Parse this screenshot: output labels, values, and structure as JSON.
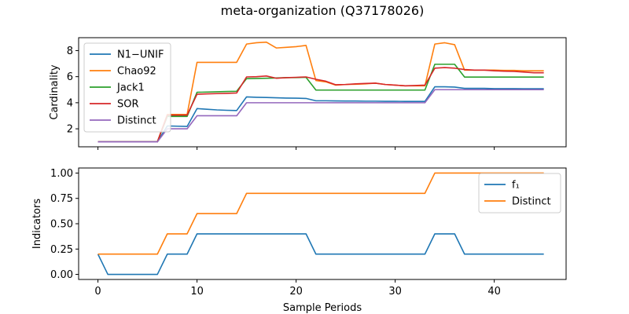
{
  "title": "meta-organization (Q37178026)",
  "chart_data": [
    {
      "type": "line",
      "ylabel": "Cardinality",
      "xlabel": "",
      "xlim": [
        -1.95,
        47.25
      ],
      "ylim": [
        0.62,
        8.99
      ],
      "xticks": [
        0,
        10,
        20,
        30,
        40
      ],
      "yticks": [
        2,
        4,
        6,
        8
      ],
      "legend_position": "top-left",
      "grid": false,
      "x": [
        0,
        1,
        2,
        3,
        4,
        5,
        6,
        7,
        8,
        9,
        10,
        11,
        12,
        13,
        14,
        15,
        16,
        17,
        18,
        19,
        20,
        21,
        22,
        23,
        24,
        25,
        26,
        27,
        28,
        29,
        30,
        31,
        32,
        33,
        34,
        35,
        36,
        37,
        38,
        39,
        40,
        41,
        42,
        43,
        44,
        45
      ],
      "series": [
        {
          "name": "N1−UNIF",
          "color": "#1f77b4",
          "values": [
            1,
            1,
            1,
            1,
            1,
            1,
            1,
            2.22,
            2.2,
            2.18,
            3.55,
            3.5,
            3.45,
            3.42,
            3.4,
            4.45,
            4.42,
            4.4,
            4.38,
            4.36,
            4.35,
            4.33,
            4.15,
            4.15,
            4.14,
            4.13,
            4.13,
            4.12,
            4.12,
            4.11,
            4.11,
            4.1,
            4.1,
            4.1,
            5.22,
            5.22,
            5.2,
            5.1,
            5.1,
            5.1,
            5.08,
            5.08,
            5.08,
            5.07,
            5.07,
            5.07
          ]
        },
        {
          "name": "Chao92",
          "color": "#ff7f0e",
          "values": [
            1,
            1,
            1,
            1,
            1,
            1,
            1,
            3.1,
            3.1,
            3.1,
            7.1,
            7.1,
            7.1,
            7.1,
            7.1,
            8.5,
            8.6,
            8.65,
            8.2,
            8.25,
            8.3,
            8.4,
            5.7,
            5.6,
            5.35,
            5.4,
            5.42,
            5.45,
            5.5,
            5.4,
            5.35,
            5.3,
            5.3,
            5.3,
            8.5,
            8.6,
            8.45,
            6.5,
            6.5,
            6.5,
            6.5,
            6.48,
            6.48,
            6.45,
            6.45,
            6.45
          ]
        },
        {
          "name": "Jack1",
          "color": "#2ca02c",
          "values": [
            1,
            1,
            1,
            1,
            1,
            1,
            1,
            2.95,
            2.95,
            2.95,
            4.8,
            4.82,
            4.84,
            4.86,
            4.88,
            5.85,
            5.86,
            5.88,
            5.9,
            5.92,
            5.93,
            5.95,
            4.97,
            4.97,
            4.97,
            4.97,
            4.97,
            4.97,
            4.97,
            4.97,
            4.97,
            4.97,
            4.97,
            4.97,
            6.95,
            6.95,
            6.95,
            5.97,
            5.97,
            5.97,
            5.97,
            5.97,
            5.97,
            5.97,
            5.97,
            5.97
          ]
        },
        {
          "name": "SOR",
          "color": "#d62728",
          "values": [
            1,
            1,
            1,
            1,
            1,
            1,
            1,
            3.05,
            3.05,
            3.05,
            4.65,
            4.68,
            4.7,
            4.72,
            4.75,
            5.98,
            6.0,
            6.05,
            5.88,
            5.92,
            5.95,
            5.98,
            5.8,
            5.65,
            5.38,
            5.4,
            5.45,
            5.48,
            5.5,
            5.4,
            5.35,
            5.3,
            5.32,
            5.35,
            6.65,
            6.7,
            6.65,
            6.55,
            6.5,
            6.5,
            6.45,
            6.42,
            6.4,
            6.35,
            6.3,
            6.3
          ]
        },
        {
          "name": "Distinct",
          "color": "#9467bd",
          "values": [
            1,
            1,
            1,
            1,
            1,
            1,
            1,
            2,
            2,
            2,
            3,
            3,
            3,
            3,
            3,
            4,
            4,
            4,
            4,
            4,
            4,
            4,
            4,
            4,
            4,
            4,
            4,
            4,
            4,
            4,
            4,
            4,
            4,
            4,
            5,
            5,
            5,
            5,
            5,
            5,
            5,
            5,
            5,
            5,
            5,
            5
          ]
        }
      ]
    },
    {
      "type": "line",
      "ylabel": "Indicators",
      "xlabel": "Sample Periods",
      "xlim": [
        -1.95,
        47.25
      ],
      "ylim": [
        -0.05,
        1.05
      ],
      "xticks": [
        0,
        10,
        20,
        30,
        40
      ],
      "yticks": [
        0.0,
        0.25,
        0.5,
        0.75,
        1.0
      ],
      "ytick_labels": [
        "0.00",
        "0.25",
        "0.50",
        "0.75",
        "1.00"
      ],
      "legend_position": "top-right",
      "grid": false,
      "x": [
        0,
        1,
        2,
        3,
        4,
        5,
        6,
        7,
        8,
        9,
        10,
        11,
        12,
        13,
        14,
        15,
        16,
        17,
        18,
        19,
        20,
        21,
        22,
        23,
        24,
        25,
        26,
        27,
        28,
        29,
        30,
        31,
        32,
        33,
        34,
        35,
        36,
        37,
        38,
        39,
        40,
        41,
        42,
        43,
        44,
        45
      ],
      "series": [
        {
          "name": "f₁",
          "color": "#1f77b4",
          "values": [
            0.2,
            0,
            0,
            0,
            0,
            0,
            0,
            0.2,
            0.2,
            0.2,
            0.4,
            0.4,
            0.4,
            0.4,
            0.4,
            0.4,
            0.4,
            0.4,
            0.4,
            0.4,
            0.4,
            0.4,
            0.2,
            0.2,
            0.2,
            0.2,
            0.2,
            0.2,
            0.2,
            0.2,
            0.2,
            0.2,
            0.2,
            0.2,
            0.4,
            0.4,
            0.4,
            0.2,
            0.2,
            0.2,
            0.2,
            0.2,
            0.2,
            0.2,
            0.2,
            0.2
          ]
        },
        {
          "name": "Distinct",
          "color": "#ff7f0e",
          "values": [
            0.2,
            0.2,
            0.2,
            0.2,
            0.2,
            0.2,
            0.2,
            0.4,
            0.4,
            0.4,
            0.6,
            0.6,
            0.6,
            0.6,
            0.6,
            0.8,
            0.8,
            0.8,
            0.8,
            0.8,
            0.8,
            0.8,
            0.8,
            0.8,
            0.8,
            0.8,
            0.8,
            0.8,
            0.8,
            0.8,
            0.8,
            0.8,
            0.8,
            0.8,
            1,
            1,
            1,
            1,
            1,
            1,
            1,
            1,
            1,
            1,
            1,
            1
          ]
        }
      ]
    }
  ]
}
